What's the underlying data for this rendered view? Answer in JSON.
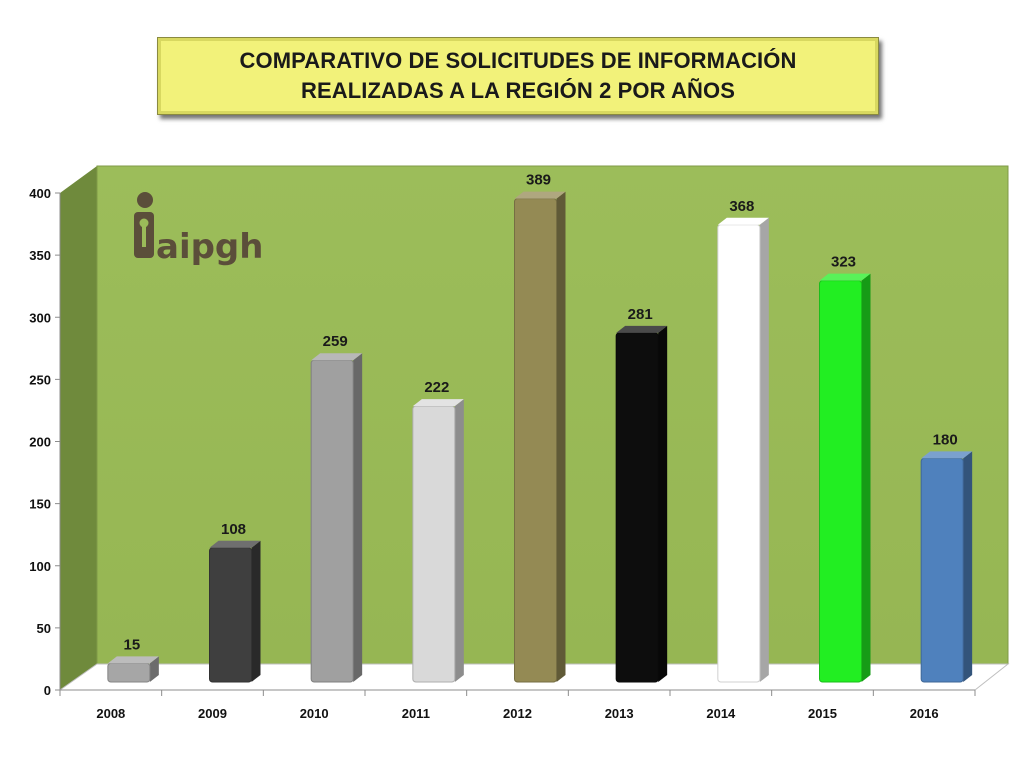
{
  "title": {
    "line1": "COMPARATIVO DE SOLICITUDES  DE INFORMACIÓN",
    "line2": "REALIZADAS A LA REGIÓN 2 POR AÑOS"
  },
  "logo": {
    "text": "aipgh",
    "icon": "person-key-icon"
  },
  "colors": {
    "wall": "#9bbb59",
    "wall_side": "#6f8a3c",
    "floor": "#ffffff",
    "title_bg": "#f2f27a"
  },
  "chart_data": {
    "type": "bar",
    "title": "COMPARATIVO DE SOLICITUDES  DE INFORMACIÓN REALIZADAS A LA REGIÓN 2 POR AÑOS",
    "categories": [
      "2008",
      "2009",
      "2010",
      "2011",
      "2012",
      "2013",
      "2014",
      "2015",
      "2016"
    ],
    "values": [
      15,
      108,
      259,
      222,
      389,
      281,
      368,
      323,
      180
    ],
    "bar_colors": [
      "#a6a6a6",
      "#3f3f3f",
      "#a0a0a0",
      "#d9d9d9",
      "#948a54",
      "#0d0d0d",
      "#ffffff",
      "#22ee22",
      "#4f81bd"
    ],
    "data_labels": [
      "15",
      "108",
      "259",
      "222",
      "389",
      "281",
      "368",
      "323",
      "180"
    ],
    "yticks": [
      "0",
      "50",
      "100",
      "150",
      "200",
      "250",
      "300",
      "350",
      "400"
    ],
    "ylim": [
      0,
      400
    ],
    "xlabel": "",
    "ylabel": "",
    "grid": false,
    "legend": "none"
  }
}
